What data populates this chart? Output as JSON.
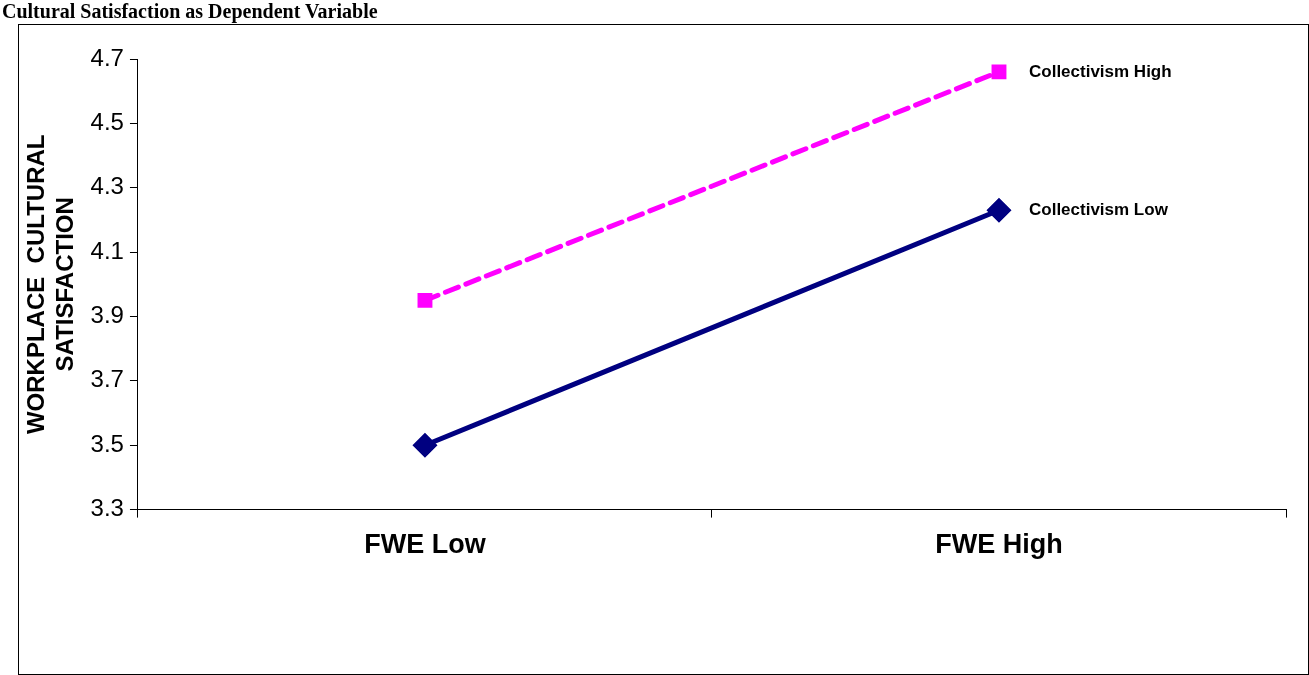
{
  "chart_data": {
    "type": "line",
    "title": "Cultural Satisfaction as Dependent Variable",
    "ylabel": "WORKPLACE  CULTURAL\nSATISFACTION",
    "categories": [
      "FWE Low",
      "FWE High"
    ],
    "series": [
      {
        "name": "Collectivism High",
        "color": "#ff00ff",
        "values": [
          3.95,
          4.66
        ],
        "marker": "square",
        "line_style": "dashed"
      },
      {
        "name": "Collectivism Low",
        "color": "#000080",
        "values": [
          3.5,
          4.23
        ],
        "marker": "diamond",
        "line_style": "solid"
      }
    ],
    "ylim": [
      3.3,
      4.7
    ],
    "yticks": [
      3.3,
      3.5,
      3.7,
      3.9,
      4.1,
      4.3,
      4.5,
      4.7
    ],
    "grid": false,
    "legend": false
  }
}
